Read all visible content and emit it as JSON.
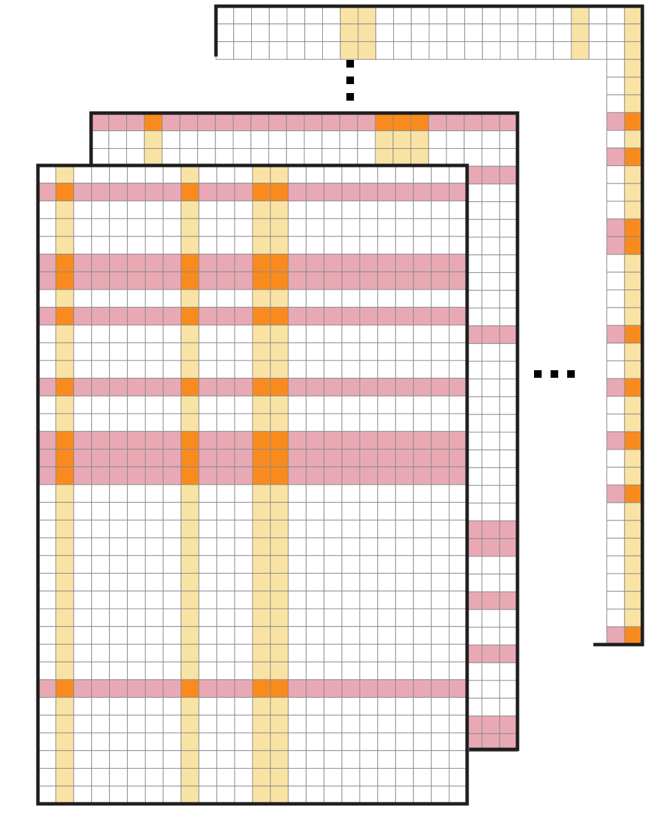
{
  "palette": {
    "plain": "#ffffff",
    "column_highlight": "#f9e3a4",
    "row_highlight": "#e8a9b5",
    "intersection": "#f98b1e",
    "grid_line": "#8a8a8a",
    "frame": "#1e1e1e",
    "ellipsis_dot": "#000000"
  },
  "layers": [
    {
      "id": "back",
      "columns": 24,
      "visible_rows": 36,
      "highlighted_columns": [
        7,
        8,
        20,
        23
      ],
      "highlighted_rows": [
        6,
        8,
        12,
        13,
        18,
        21,
        24,
        27,
        35
      ],
      "visible_intersection_columns": [
        23
      ]
    },
    {
      "id": "middle",
      "columns": 24,
      "visible_rows": 36,
      "highlighted_columns": [
        3,
        16,
        17,
        18
      ],
      "highlighted_rows": [
        0,
        3,
        12,
        23,
        24,
        27,
        30,
        34,
        35
      ],
      "visible_intersection_columns": [
        3,
        16,
        17,
        18
      ]
    },
    {
      "id": "front",
      "columns": 24,
      "visible_rows": 36,
      "highlighted_columns": [
        1,
        8,
        12,
        13
      ],
      "highlighted_rows": [
        1,
        5,
        6,
        8,
        12,
        15,
        16,
        17,
        29
      ],
      "visible_intersection_columns": [
        1,
        8,
        12,
        13
      ]
    }
  ],
  "ellipses": [
    {
      "id": "vertical",
      "orientation": "vertical",
      "dots": 3
    },
    {
      "id": "horizontal",
      "orientation": "horizontal",
      "dots": 3
    }
  ]
}
